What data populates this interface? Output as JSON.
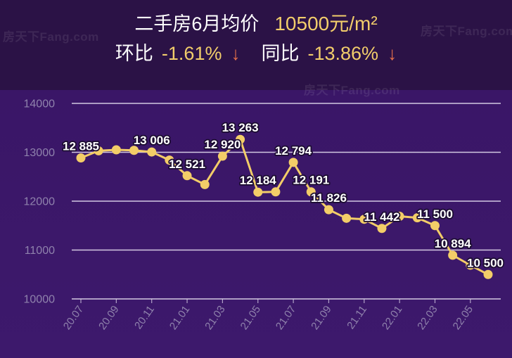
{
  "header": {
    "title": "二手房6月均价",
    "price": "10500元/m²",
    "mom_label": "环比",
    "mom_value": "-1.61%",
    "mom_arrow": "↓",
    "yoy_label": "同比",
    "yoy_value": "-13.86%",
    "yoy_arrow": "↓"
  },
  "watermark": "房天下Fang.com",
  "colors": {
    "header_bg": "#2b1246",
    "chart_bg": "#3a1667",
    "accent_gold": "#f2cd6b",
    "down_arrow": "#e8714a",
    "line": "#f3cd68",
    "grid": "#e4ddf0",
    "axis_text": "#8f82ac",
    "label_text": "#ffffff",
    "label_outline": "#1b0c30"
  },
  "chart_data": {
    "type": "line",
    "categories": [
      "20.07",
      "",
      "20.09",
      "",
      "20.11",
      "",
      "21.01",
      "",
      "21.03",
      "",
      "21.05",
      "",
      "21.07",
      "",
      "21.09",
      "",
      "21.11",
      "",
      "22.01",
      "",
      "22.03",
      "",
      "22.05",
      ""
    ],
    "series": [
      {
        "values": [
          12885,
          13030,
          13050,
          13040,
          13006,
          12840,
          12521,
          12340,
          12920,
          13263,
          12184,
          12190,
          12794,
          12191,
          11826,
          11650,
          11630,
          11442,
          11690,
          11660,
          11500,
          10894,
          10690,
          10500
        ]
      }
    ],
    "point_labels": [
      "12 885",
      "",
      "",
      "",
      "13 006",
      "",
      "12 521",
      "",
      "12 920",
      "13 263",
      "12 184",
      "",
      "12 794",
      "12 191",
      "11 826",
      "",
      "",
      "11 442",
      "",
      "",
      "11 500",
      "10 894",
      "",
      "10 500"
    ],
    "ylim": [
      10000,
      14000
    ],
    "y_ticks": [
      10000,
      11000,
      12000,
      13000,
      14000
    ],
    "grid": true
  }
}
